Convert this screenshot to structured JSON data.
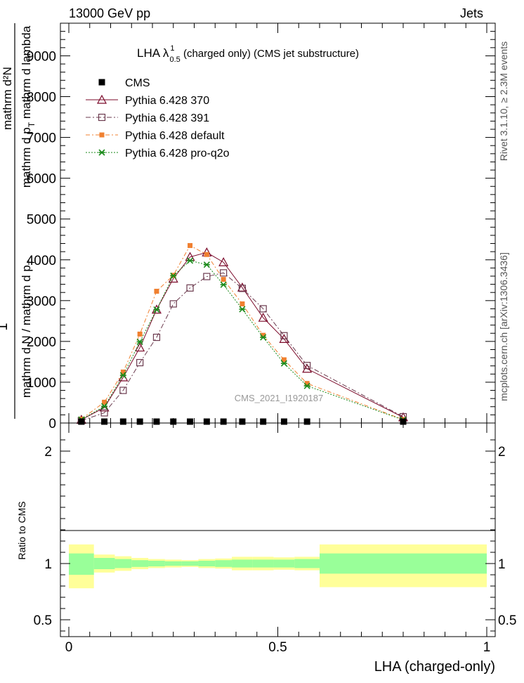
{
  "header": {
    "left": "13000 GeV pp",
    "right": "Jets"
  },
  "side_labels": {
    "rivet": "Rivet 3.1.10, ≥ 2.3M events",
    "mcplots": "mcplots.cern.ch [arXiv:1306.3436]"
  },
  "watermark": "CMS_2021_I1920187",
  "colors": {
    "cms": "#000000",
    "p370": "#7b0a2a",
    "p391": "#6b3a4e",
    "pdefault": "#f08030",
    "pq2o": "#1a8a1a",
    "band_inner": "#99ff99",
    "band_outer": "#ffff99"
  },
  "chart_data": [
    {
      "type": "line",
      "title_prefix": "LHA λ",
      "title_sup": "1",
      "title_sub": "0.5",
      "title_suffix": " (charged only) (CMS jet substructure)",
      "ylabel_top": "mathrm d²N",
      "ylabel_denom": "mathrm d p",
      "ylabel_denom_sub": "T",
      "ylabel_denom_rest": " mathrm d lambda",
      "ylabel_prefix": "1",
      "ylabel_main": "mathrm d N / mathrm d p",
      "ylabel_main_sub": "T",
      "xlim": [
        0,
        1
      ],
      "ylim": [
        0,
        9800
      ],
      "yticks": [
        0,
        1000,
        2000,
        3000,
        4000,
        5000,
        6000,
        7000,
        8000,
        9000
      ],
      "ytick_labels": [
        "0",
        "1000",
        "2000",
        "3000",
        "4000",
        "5000",
        "6000",
        "7000",
        "8000",
        "9000"
      ],
      "x": [
        0.03,
        0.085,
        0.13,
        0.17,
        0.21,
        0.25,
        0.29,
        0.33,
        0.37,
        0.415,
        0.465,
        0.515,
        0.57,
        0.8
      ],
      "series": [
        {
          "name": "CMS",
          "marker": "square",
          "values": [
            0,
            0,
            0,
            0,
            0,
            0,
            0,
            0,
            0,
            0,
            0,
            0,
            0,
            0
          ]
        },
        {
          "name": "Pythia 6.428 370",
          "marker": "triangle",
          "values": [
            80,
            380,
            1120,
            1850,
            2780,
            3540,
            4070,
            4180,
            3940,
            3320,
            2580,
            2060,
            1330,
            140
          ]
        },
        {
          "name": "Pythia 6.428 391",
          "marker": "open-square",
          "values": [
            60,
            250,
            800,
            1480,
            2100,
            2920,
            3310,
            3590,
            3680,
            3300,
            2800,
            2140,
            1410,
            155
          ]
        },
        {
          "name": "Pythia 6.428 default",
          "marker": "filled-square",
          "values": [
            95,
            510,
            1250,
            2180,
            3230,
            3620,
            4350,
            4130,
            3520,
            2920,
            2150,
            1550,
            970,
            85
          ]
        },
        {
          "name": "Pythia 6.428 pro-q2o",
          "marker": "star",
          "values": [
            85,
            410,
            1170,
            1990,
            2780,
            3610,
            3980,
            3880,
            3390,
            2790,
            2100,
            1460,
            910,
            78
          ]
        }
      ]
    },
    {
      "type": "area",
      "ylabel": "Ratio to CMS",
      "xlabel": "LHA (charged-only)",
      "xlim": [
        0,
        1
      ],
      "ylim": [
        0.35,
        2.25
      ],
      "yticks": [
        0.5,
        1,
        2
      ],
      "ytick_labels": [
        "0.5",
        "1",
        "2"
      ],
      "xticks": [
        0,
        0.5,
        1
      ],
      "xtick_labels": [
        "0",
        "0.5",
        "1"
      ],
      "bins": [
        [
          0,
          0.06
        ],
        [
          0.06,
          0.11
        ],
        [
          0.11,
          0.15
        ],
        [
          0.15,
          0.19
        ],
        [
          0.19,
          0.23
        ],
        [
          0.23,
          0.27
        ],
        [
          0.27,
          0.31
        ],
        [
          0.31,
          0.35
        ],
        [
          0.35,
          0.39
        ],
        [
          0.39,
          0.44
        ],
        [
          0.44,
          0.49
        ],
        [
          0.49,
          0.54
        ],
        [
          0.54,
          0.6
        ],
        [
          0.6,
          1.0
        ]
      ],
      "inner_band": [
        [
          0.9,
          1.09
        ],
        [
          0.95,
          1.05
        ],
        [
          0.96,
          1.04
        ],
        [
          0.97,
          1.03
        ],
        [
          0.975,
          1.025
        ],
        [
          0.98,
          1.02
        ],
        [
          0.98,
          1.02
        ],
        [
          0.975,
          1.025
        ],
        [
          0.97,
          1.03
        ],
        [
          0.965,
          1.035
        ],
        [
          0.965,
          1.035
        ],
        [
          0.965,
          1.035
        ],
        [
          0.96,
          1.04
        ],
        [
          0.91,
          1.09
        ]
      ],
      "outer_band": [
        [
          0.78,
          1.17
        ],
        [
          0.92,
          1.08
        ],
        [
          0.935,
          1.065
        ],
        [
          0.95,
          1.05
        ],
        [
          0.96,
          1.04
        ],
        [
          0.965,
          1.035
        ],
        [
          0.97,
          1.03
        ],
        [
          0.96,
          1.04
        ],
        [
          0.955,
          1.045
        ],
        [
          0.94,
          1.06
        ],
        [
          0.94,
          1.06
        ],
        [
          0.945,
          1.055
        ],
        [
          0.94,
          1.06
        ],
        [
          0.79,
          1.17
        ]
      ]
    }
  ]
}
